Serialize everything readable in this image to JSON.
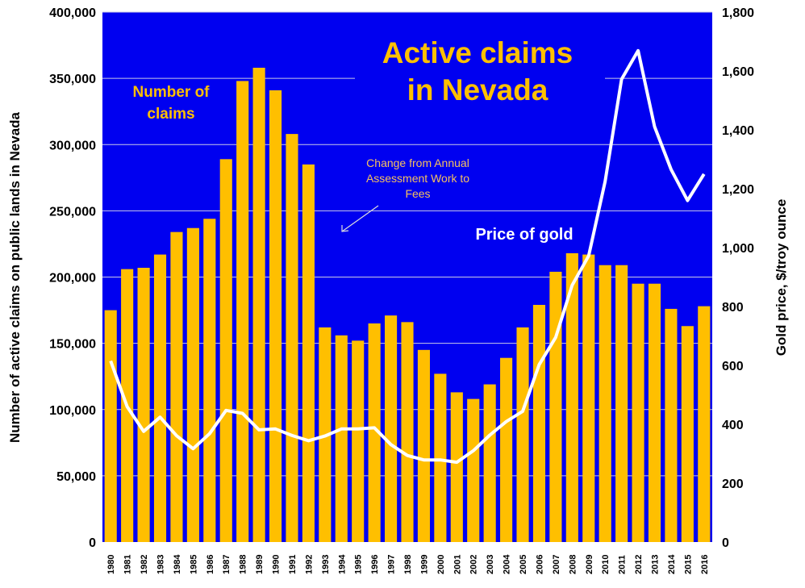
{
  "chart_data": {
    "type": "bar+line",
    "title": "Active claims in Nevada",
    "title_lines": [
      "Active claims",
      "in Nevada"
    ],
    "ylabel": "Number of active claims on public lands in Nevada",
    "y2label": "Gold price, $/troy ounce",
    "ylim": [
      0,
      400000
    ],
    "y2lim": [
      0,
      1800
    ],
    "yticks": [
      "0",
      "50,000",
      "100,000",
      "150,000",
      "200,000",
      "250,000",
      "300,000",
      "350,000",
      "400,000"
    ],
    "y2ticks": [
      "0",
      "200",
      "400",
      "600",
      "800",
      "1,000",
      "1,200",
      "1,400",
      "1,600",
      "1,800"
    ],
    "grid": true,
    "categories": [
      "1980",
      "1981",
      "1982",
      "1983",
      "1984",
      "1985",
      "1986",
      "1987",
      "1988",
      "1989",
      "1990",
      "1991",
      "1992",
      "1993",
      "1994",
      "1995",
      "1996",
      "1997",
      "1998",
      "1999",
      "2000",
      "2001",
      "2002",
      "2003",
      "2004",
      "2005",
      "2006",
      "2007",
      "2008",
      "2009",
      "2010",
      "2011",
      "2012",
      "2013",
      "2014",
      "2015",
      "2016"
    ],
    "series": [
      {
        "name": "Number of claims",
        "label_lines": [
          "Number of",
          "claims"
        ],
        "type": "bar",
        "axis": "left",
        "color": "#ffbf00",
        "values": [
          175000,
          206000,
          207000,
          217000,
          234000,
          237000,
          244000,
          289000,
          348000,
          358000,
          341000,
          308000,
          285000,
          162000,
          156000,
          152000,
          165000,
          171000,
          166000,
          145000,
          127000,
          113000,
          108000,
          119000,
          139000,
          162000,
          179000,
          204000,
          218000,
          217000,
          209000,
          209000,
          195000,
          195000,
          176000,
          163000,
          178000
        ]
      },
      {
        "name": "Price of gold",
        "type": "line",
        "axis": "right",
        "color": "#ffffff",
        "values": [
          615,
          460,
          376,
          424,
          361,
          317,
          368,
          447,
          437,
          381,
          384,
          362,
          344,
          360,
          384,
          384,
          388,
          331,
          294,
          279,
          279,
          271,
          310,
          363,
          409,
          444,
          603,
          695,
          872,
          972,
          1225,
          1572,
          1669,
          1411,
          1266,
          1160,
          1250
        ]
      }
    ],
    "annotation": {
      "lines": [
        "Change from Annual",
        "Assessment Work to",
        "Fees"
      ]
    },
    "colors": {
      "background": "#0000f0",
      "annotation": "#f5c060",
      "title": "#ffc000"
    }
  }
}
